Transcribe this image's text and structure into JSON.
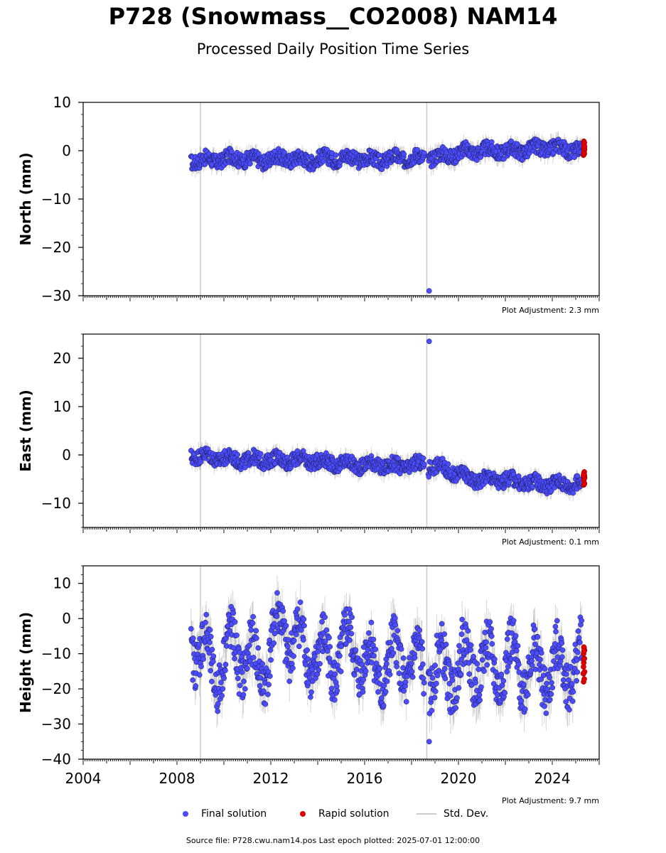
{
  "title": "P728 (Snowmass__CO2008) NAM14",
  "subtitle": "Processed Daily Position Time Series",
  "legend": {
    "final_label": "Final solution",
    "rapid_label": "Rapid solution",
    "std_label": "Std. Dev."
  },
  "footer": "Source file: P728.cwu.nam14.pos  Last epoch plotted: 2025-07-01 12:00:00",
  "colors": {
    "final": "#4b4bff",
    "rapid": "#e00000",
    "stddev": "#cccccc",
    "vline": "#cccccc"
  },
  "chart_data": [
    {
      "type": "scatter",
      "ylabel": "North (mm)",
      "xlim": [
        2004,
        2026
      ],
      "ylim": [
        -30,
        10
      ],
      "yticks": [
        10,
        0,
        -10,
        -20,
        -30
      ],
      "yticks_labels": [
        "10",
        "0",
        "−10",
        "−20",
        "−30"
      ],
      "adjustment": "Plot Adjustment: 2.3 mm",
      "vertical_lines": [
        2009.0,
        2018.65
      ],
      "series": [
        {
          "name": "Final solution",
          "x": [
            2008.7,
            2009.5,
            2010.5,
            2011.5,
            2012.5,
            2013.5,
            2014.5,
            2015.5,
            2016.5,
            2017.5,
            2018.5,
            2018.75,
            2019.5,
            2020.5,
            2021.5,
            2022.5,
            2023.5,
            2024.5,
            2025.2
          ],
          "y": [
            -2,
            -2,
            -1.5,
            -2,
            -1.5,
            -2,
            -1.5,
            -1.5,
            -2,
            -1.5,
            -1.5,
            -29,
            -1,
            0,
            0,
            0,
            0.5,
            0.5,
            0
          ]
        },
        {
          "name": "Rapid solution",
          "x": [
            2025.35
          ],
          "y": [
            0.5
          ]
        }
      ]
    },
    {
      "type": "scatter",
      "ylabel": "East (mm)",
      "xlim": [
        2004,
        2026
      ],
      "ylim": [
        -15,
        25
      ],
      "yticks": [
        20,
        10,
        0,
        -10
      ],
      "yticks_labels": [
        "20",
        "10",
        "0",
        "−10"
      ],
      "adjustment": "Plot Adjustment: 0.1 mm",
      "vertical_lines": [
        2009.0,
        2018.65
      ],
      "series": [
        {
          "name": "Final solution",
          "x": [
            2008.7,
            2009.5,
            2010.5,
            2011.5,
            2012.5,
            2013.5,
            2014.5,
            2015.5,
            2016.5,
            2017.5,
            2018.5,
            2018.75,
            2019.5,
            2020.5,
            2021.5,
            2022.5,
            2023.5,
            2024.5,
            2025.2
          ],
          "y": [
            0,
            -0.5,
            -1,
            -1,
            -1,
            -1,
            -1.5,
            -2,
            -2,
            -2.5,
            -2,
            23.5,
            -3,
            -5,
            -5,
            -5.5,
            -6,
            -6,
            -6
          ]
        },
        {
          "name": "Rapid solution",
          "x": [
            2025.35
          ],
          "y": [
            -5
          ]
        }
      ]
    },
    {
      "type": "scatter",
      "ylabel": "Height (mm)",
      "xlabel": "",
      "xlim": [
        2004,
        2026
      ],
      "ylim": [
        -40,
        15
      ],
      "xticks": [
        2004,
        2008,
        2012,
        2016,
        2020,
        2024
      ],
      "yticks": [
        10,
        0,
        -10,
        -20,
        -30,
        -40
      ],
      "yticks_labels": [
        "10",
        "0",
        "−10",
        "−20",
        "−30",
        "−40"
      ],
      "adjustment": "Plot Adjustment: 9.7 mm",
      "vertical_lines": [
        2009.0,
        2018.65
      ],
      "series": [
        {
          "name": "Final solution",
          "x": [
            2008.7,
            2009.5,
            2010.5,
            2011.5,
            2012.5,
            2013.5,
            2014.5,
            2015.5,
            2016.5,
            2017.5,
            2018.5,
            2018.75,
            2019.5,
            2020.5,
            2021.5,
            2022.5,
            2023.5,
            2024.5,
            2025.2
          ],
          "y": [
            -5,
            -15,
            -8,
            -15,
            -2,
            -10,
            -12,
            -8,
            -15,
            -12,
            -15,
            -35,
            -15,
            -12,
            -14,
            -13,
            -15,
            -14,
            -12
          ]
        },
        {
          "name": "Rapid solution",
          "x": [
            2025.35
          ],
          "y": [
            -13
          ]
        }
      ]
    }
  ]
}
